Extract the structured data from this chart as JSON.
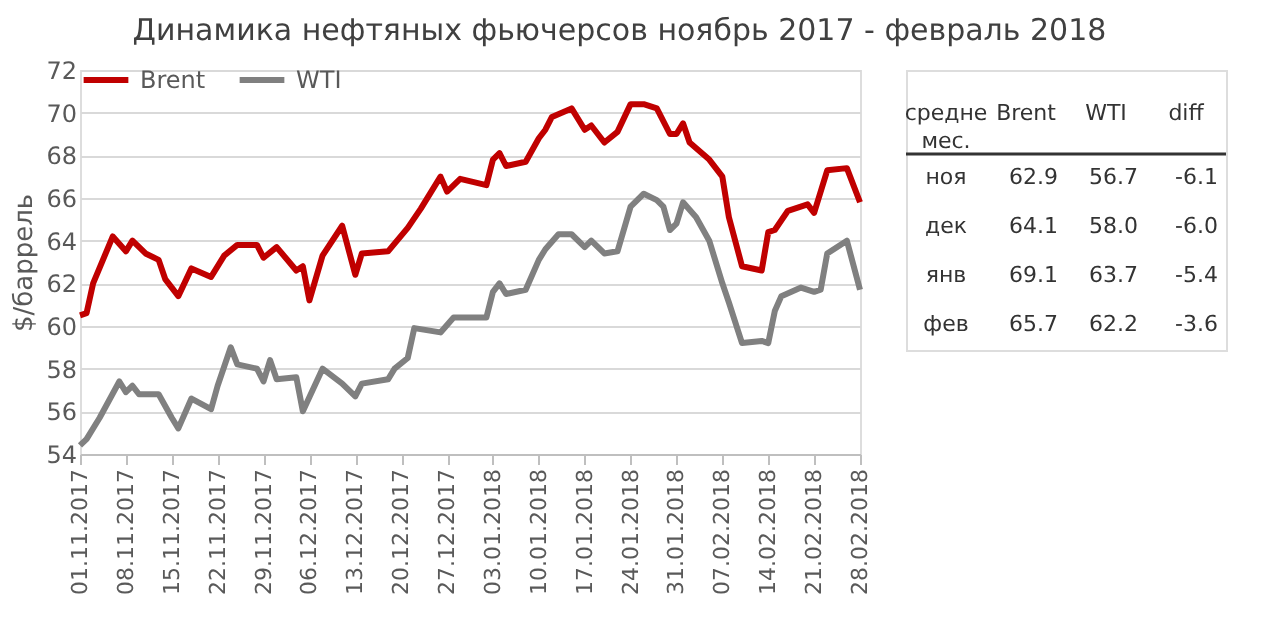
{
  "chart_data": [
    {
      "type": "line",
      "title": "Динамика нефтяных фьючерсов ноябрь 2017 - февраль 2018",
      "ylabel": "$/баррель",
      "xlim": [
        "2017-11-01",
        "2018-02-28"
      ],
      "ylim": [
        54,
        72
      ],
      "yticks": [
        54,
        56,
        58,
        60,
        62,
        64,
        66,
        68,
        70,
        72
      ],
      "xticks": [
        {
          "value": "2017-11-01",
          "label": "01.11.2017"
        },
        {
          "value": "2017-11-08",
          "label": "08.11.2017"
        },
        {
          "value": "2017-11-15",
          "label": "15.11.2017"
        },
        {
          "value": "2017-11-22",
          "label": "22.11.2017"
        },
        {
          "value": "2017-11-29",
          "label": "29.11.2017"
        },
        {
          "value": "2017-12-06",
          "label": "06.12.2017"
        },
        {
          "value": "2017-12-13",
          "label": "13.12.2017"
        },
        {
          "value": "2017-12-20",
          "label": "20.12.2017"
        },
        {
          "value": "2017-12-27",
          "label": "27.12.2017"
        },
        {
          "value": "2018-01-03",
          "label": "03.01.2018"
        },
        {
          "value": "2018-01-10",
          "label": "10.01.2018"
        },
        {
          "value": "2018-01-17",
          "label": "17.01.2018"
        },
        {
          "value": "2018-01-24",
          "label": "24.01.2018"
        },
        {
          "value": "2018-01-31",
          "label": "31.01.2018"
        },
        {
          "value": "2018-02-07",
          "label": "07.02.2018"
        },
        {
          "value": "2018-02-14",
          "label": "14.02.2018"
        },
        {
          "value": "2018-02-21",
          "label": "21.02.2018"
        },
        {
          "value": "2018-02-28",
          "label": "28.02.2018"
        }
      ],
      "grid": "y",
      "legend": "top",
      "marker": "none",
      "line_style": "solid",
      "series": [
        {
          "name": "Brent",
          "color": "#c00000",
          "x": [
            "2017-11-01",
            "2017-11-02",
            "2017-11-03",
            "2017-11-06",
            "2017-11-08",
            "2017-11-09",
            "2017-11-11",
            "2017-11-13",
            "2017-11-14",
            "2017-11-16",
            "2017-11-18",
            "2017-11-21",
            "2017-11-23",
            "2017-11-25",
            "2017-11-28",
            "2017-11-29",
            "2017-12-01",
            "2017-12-04",
            "2017-12-05",
            "2017-12-06",
            "2017-12-08",
            "2017-12-11",
            "2017-12-13",
            "2017-12-14",
            "2017-12-18",
            "2017-12-21",
            "2017-12-23",
            "2017-12-26",
            "2017-12-27",
            "2017-12-29",
            "2018-01-02",
            "2018-01-03",
            "2018-01-04",
            "2018-01-05",
            "2018-01-08",
            "2018-01-10",
            "2018-01-11",
            "2018-01-12",
            "2018-01-15",
            "2018-01-17",
            "2018-01-18",
            "2018-01-20",
            "2018-01-22",
            "2018-01-24",
            "2018-01-26",
            "2018-01-28",
            "2018-01-30",
            "2018-01-31",
            "2018-02-01",
            "2018-02-02",
            "2018-02-05",
            "2018-02-07",
            "2018-02-08",
            "2018-02-10",
            "2018-02-13",
            "2018-02-14",
            "2018-02-15",
            "2018-02-17",
            "2018-02-20",
            "2018-02-21",
            "2018-02-23",
            "2018-02-26",
            "2018-02-28"
          ],
          "values": [
            60.5,
            60.6,
            62.0,
            64.2,
            63.5,
            64.0,
            63.4,
            63.1,
            62.2,
            61.4,
            62.7,
            62.3,
            63.3,
            63.8,
            63.8,
            63.2,
            63.7,
            62.6,
            62.8,
            61.2,
            63.3,
            64.7,
            62.4,
            63.4,
            63.5,
            64.6,
            65.5,
            67.0,
            66.3,
            66.9,
            66.6,
            67.8,
            68.1,
            67.5,
            67.7,
            68.8,
            69.2,
            69.8,
            70.2,
            69.2,
            69.4,
            68.6,
            69.1,
            70.4,
            70.4,
            70.2,
            69.0,
            69.0,
            69.5,
            68.6,
            67.8,
            67.0,
            65.1,
            62.8,
            62.6,
            64.4,
            64.5,
            65.4,
            65.7,
            65.3,
            67.3,
            67.4,
            65.8
          ]
        },
        {
          "name": "WTI",
          "color": "#808080",
          "x": [
            "2017-11-01",
            "2017-11-02",
            "2017-11-04",
            "2017-11-07",
            "2017-11-08",
            "2017-11-09",
            "2017-11-10",
            "2017-11-13",
            "2017-11-15",
            "2017-11-16",
            "2017-11-18",
            "2017-11-21",
            "2017-11-22",
            "2017-11-24",
            "2017-11-25",
            "2017-11-28",
            "2017-11-29",
            "2017-11-30",
            "2017-12-01",
            "2017-12-04",
            "2017-12-05",
            "2017-12-08",
            "2017-12-11",
            "2017-12-13",
            "2017-12-14",
            "2017-12-18",
            "2017-12-19",
            "2017-12-21",
            "2017-12-22",
            "2017-12-26",
            "2017-12-28",
            "2018-01-02",
            "2018-01-03",
            "2018-01-04",
            "2018-01-05",
            "2018-01-08",
            "2018-01-10",
            "2018-01-11",
            "2018-01-13",
            "2018-01-15",
            "2018-01-17",
            "2018-01-18",
            "2018-01-20",
            "2018-01-22",
            "2018-01-24",
            "2018-01-26",
            "2018-01-28",
            "2018-01-29",
            "2018-01-30",
            "2018-01-31",
            "2018-02-01",
            "2018-02-03",
            "2018-02-05",
            "2018-02-07",
            "2018-02-08",
            "2018-02-10",
            "2018-02-13",
            "2018-02-14",
            "2018-02-15",
            "2018-02-16",
            "2018-02-19",
            "2018-02-21",
            "2018-02-22",
            "2018-02-23",
            "2018-02-26",
            "2018-02-28"
          ],
          "values": [
            54.4,
            54.7,
            55.7,
            57.4,
            56.9,
            57.2,
            56.8,
            56.8,
            55.7,
            55.2,
            56.6,
            56.1,
            57.2,
            59.0,
            58.2,
            58.0,
            57.4,
            58.4,
            57.5,
            57.6,
            56.0,
            58.0,
            57.3,
            56.7,
            57.3,
            57.5,
            58.0,
            58.5,
            59.9,
            59.7,
            60.4,
            60.4,
            61.6,
            62.0,
            61.5,
            61.7,
            63.1,
            63.6,
            64.3,
            64.3,
            63.7,
            64.0,
            63.4,
            63.5,
            65.6,
            66.2,
            65.9,
            65.6,
            64.5,
            64.8,
            65.8,
            65.1,
            64.0,
            62.0,
            61.1,
            59.2,
            59.3,
            59.2,
            60.7,
            61.4,
            61.8,
            61.6,
            61.7,
            63.4,
            64.0,
            61.7
          ]
        }
      ]
    },
    {
      "type": "other",
      "categories": [
        "средне мес.",
        "Brent",
        "WTI",
        "diff"
      ],
      "y_categories": [
        "ноя",
        "дек",
        "янв",
        "фев"
      ],
      "annotations": [
        "62.9",
        "56.7",
        "-6.1",
        "64.1",
        "58.0",
        "-6.0",
        "69.1",
        "63.7",
        "-5.4",
        "65.7",
        "62.2",
        "-3.6"
      ]
    }
  ]
}
